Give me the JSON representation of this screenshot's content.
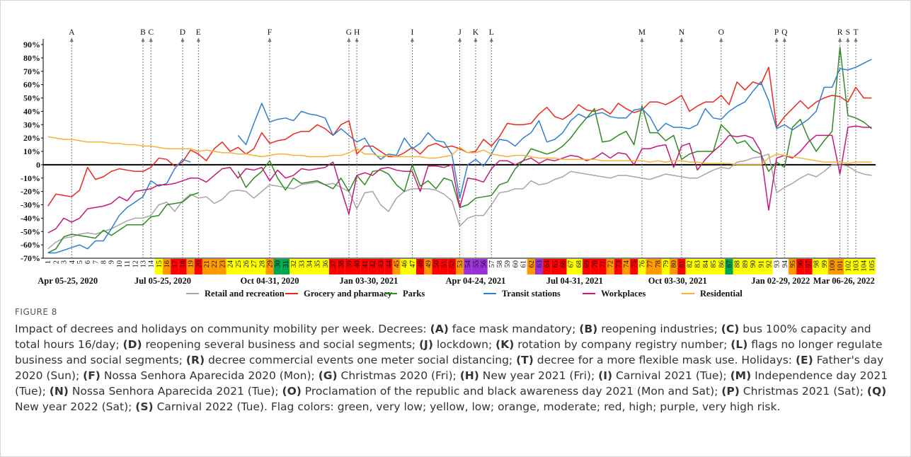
{
  "chart_data": {
    "type": "line",
    "x": [
      1,
      2,
      3,
      4,
      5,
      6,
      7,
      8,
      9,
      10,
      11,
      12,
      13,
      14,
      15,
      16,
      17,
      18,
      19,
      20,
      21,
      22,
      23,
      24,
      25,
      26,
      27,
      28,
      29,
      30,
      31,
      32,
      33,
      34,
      35,
      36,
      37,
      38,
      39,
      40,
      41,
      42,
      43,
      44,
      45,
      46,
      47,
      48,
      49,
      50,
      51,
      52,
      53,
      54,
      55,
      56,
      57,
      58,
      59,
      60,
      61,
      62,
      63,
      64,
      65,
      66,
      67,
      68,
      69,
      70,
      71,
      72,
      73,
      74,
      75,
      76,
      77,
      78,
      79,
      80,
      81,
      82,
      83,
      84,
      85,
      86,
      87,
      88,
      89,
      90,
      91,
      92,
      93,
      94,
      95,
      96,
      97,
      98,
      99,
      100,
      101,
      102,
      103,
      104,
      105
    ],
    "xlim": [
      0.4,
      105.5
    ],
    "ylim": [
      -70,
      90
    ],
    "yticks": [
      {
        "value": -70,
        "label": "-70%"
      },
      {
        "value": -60,
        "label": "-60%"
      },
      {
        "value": -50,
        "label": "-50%"
      },
      {
        "value": -40,
        "label": "-40%"
      },
      {
        "value": -30,
        "label": "-30%"
      },
      {
        "value": -20,
        "label": "-20%"
      },
      {
        "value": -10,
        "label": "-10%"
      },
      0,
      {
        "value": 10,
        "label": "10%"
      },
      {
        "value": 20,
        "label": "20%"
      },
      {
        "value": 30,
        "label": "30%"
      },
      {
        "value": 40,
        "label": "40%"
      },
      {
        "value": 50,
        "label": "50%"
      },
      {
        "value": 60,
        "label": "60%"
      },
      {
        "value": 70,
        "label": "70%"
      },
      {
        "value": 80,
        "label": "80%"
      },
      {
        "value": 90,
        "label": "90%"
      }
    ],
    "series": [
      {
        "name": "Retail and recreation",
        "color": "#a6a6a6",
        "values": [
          -63,
          -58,
          -55,
          -54,
          -52,
          -51,
          -52,
          -50,
          -48,
          -45,
          -42,
          -40,
          -40,
          -38,
          -30,
          -28,
          -35,
          -27,
          -22,
          -25,
          -24,
          -29,
          -26,
          -20,
          -19,
          -20,
          -25,
          -20,
          -15,
          -16,
          -17,
          -18,
          -15,
          -14,
          -13,
          -15,
          -14,
          -17,
          -20,
          -33,
          -21,
          -20,
          -30,
          -35,
          -25,
          -20,
          -18,
          -18,
          -18,
          -19,
          -22,
          -27,
          -46,
          -40,
          -38,
          -38,
          -30,
          -21,
          -20,
          -18,
          -18,
          -12,
          -15,
          -14,
          -11,
          -9,
          -5,
          -6,
          -7,
          -8,
          -9,
          -10,
          -8,
          -8,
          -9,
          -10,
          -11,
          -9,
          -7,
          -8,
          -9,
          -10,
          -10,
          -7,
          -4,
          -2,
          -3,
          2,
          3,
          5,
          6,
          8,
          -21,
          -17,
          -14,
          -10,
          -7,
          -9,
          -5,
          0,
          0,
          -1,
          -5,
          -7,
          -8
        ]
      },
      {
        "name": "Grocery and pharmacy",
        "color": "#e8281e",
        "values": [
          -31,
          -22,
          -23,
          -24,
          -19,
          -2,
          -11,
          -9,
          -5,
          -3,
          -4,
          -5,
          -5,
          -2,
          5,
          4,
          -1,
          2,
          11,
          8,
          3,
          12,
          17,
          10,
          13,
          8,
          12,
          24,
          16,
          18,
          19,
          23,
          25,
          25,
          30,
          27,
          22,
          30,
          33,
          8,
          14,
          14,
          10,
          6,
          6,
          9,
          13,
          8,
          14,
          16,
          13,
          14,
          12,
          9,
          10,
          19,
          14,
          21,
          31,
          30,
          30,
          31,
          38,
          43,
          36,
          34,
          38,
          45,
          41,
          40,
          42,
          38,
          46,
          42,
          39,
          41,
          47,
          47,
          45,
          48,
          52,
          40,
          44,
          47,
          47,
          52,
          45,
          62,
          56,
          62,
          60,
          73,
          28,
          36,
          42,
          48,
          42,
          47,
          50,
          52,
          51,
          47,
          58,
          50,
          50
        ]
      },
      {
        "name": "Parks",
        "color": "#2e8b22",
        "values": [
          -66,
          -63,
          -54,
          -52,
          -53,
          -54,
          -55,
          -49,
          -53,
          -49,
          -45,
          -45,
          -45,
          -39,
          -38,
          -30,
          -29,
          -28,
          -23,
          -21,
          null,
          null,
          null,
          null,
          -5,
          -17,
          -10,
          -5,
          3,
          -10,
          -19,
          -10,
          -14,
          -13,
          -12,
          -15,
          -18,
          -10,
          -20,
          -8,
          -15,
          -5,
          -4,
          -7,
          -15,
          -20,
          0,
          -16,
          -12,
          -18,
          -10,
          -12,
          -32,
          -30,
          -25,
          -24,
          -23,
          -15,
          -13,
          -3,
          3,
          12,
          10,
          8,
          10,
          14,
          20,
          28,
          35,
          42,
          17,
          18,
          22,
          25,
          15,
          44,
          24,
          24,
          18,
          22,
          4,
          8,
          10,
          10,
          10,
          30,
          24,
          16,
          18,
          11,
          8,
          -5,
          2,
          -2,
          28,
          34,
          20,
          10,
          18,
          25,
          88,
          37,
          35,
          32,
          27
        ]
      },
      {
        "name": "Transit stations",
        "color": "#2f7fd0",
        "values": [
          -66,
          -66,
          -64,
          -62,
          -60,
          -63,
          -57,
          -57,
          -48,
          -38,
          -32,
          -28,
          -24,
          -12,
          -16,
          -14,
          -3,
          4,
          2,
          null,
          null,
          null,
          null,
          null,
          22,
          15,
          31,
          46,
          32,
          34,
          35,
          33,
          40,
          38,
          37,
          35,
          22,
          27,
          22,
          17,
          20,
          10,
          4,
          8,
          7,
          20,
          12,
          16,
          24,
          18,
          17,
          8,
          -25,
          0,
          4,
          -1,
          8,
          19,
          18,
          14,
          20,
          24,
          33,
          17,
          19,
          24,
          33,
          38,
          35,
          38,
          39,
          36,
          35,
          35,
          41,
          42,
          36,
          25,
          31,
          28,
          28,
          27,
          30,
          42,
          35,
          34,
          40,
          44,
          47,
          55,
          62,
          48,
          27,
          30,
          26,
          30,
          34,
          40,
          58,
          58,
          72,
          71,
          73,
          76,
          79
        ]
      },
      {
        "name": "Workplaces",
        "color": "#c2187a",
        "values": [
          -51,
          -48,
          -40,
          -43,
          -40,
          -33,
          -32,
          -31,
          -29,
          -24,
          -27,
          -20,
          -19,
          -18,
          -15,
          -15,
          -14,
          -12,
          -10,
          -10,
          -13,
          -8,
          -3,
          -2,
          -10,
          -3,
          -4,
          -2,
          -12,
          -4,
          -10,
          -8,
          -3,
          -4,
          -3,
          -2,
          2,
          -18,
          -37,
          -8,
          -6,
          -8,
          -3,
          -2,
          -4,
          -5,
          -5,
          -20,
          -1,
          -1,
          -2,
          0,
          -32,
          -10,
          -11,
          -13,
          -3,
          3,
          3,
          0,
          3,
          5,
          1,
          4,
          3,
          5,
          7,
          6,
          3,
          5,
          9,
          5,
          9,
          8,
          0,
          12,
          12,
          14,
          15,
          -2,
          14,
          16,
          -4,
          4,
          10,
          15,
          22,
          21,
          22,
          20,
          10,
          -34,
          5,
          7,
          5,
          10,
          17,
          22,
          22,
          22,
          -7,
          28,
          29,
          28,
          28
        ]
      },
      {
        "name": "Residential",
        "color": "#f5b335",
        "values": [
          21,
          20,
          19,
          19,
          18,
          17,
          17,
          17,
          16,
          16,
          15,
          15,
          14,
          14,
          13,
          12,
          12,
          12,
          12,
          10,
          11,
          10,
          9,
          9,
          8,
          8,
          7,
          6,
          7,
          8,
          8,
          7,
          7,
          6,
          6,
          6,
          7,
          7,
          9,
          12,
          8,
          8,
          6,
          7,
          6,
          6,
          6,
          6,
          5,
          5,
          6,
          7,
          13,
          9,
          9,
          11,
          8,
          7,
          6,
          7,
          7,
          6,
          5,
          5,
          5,
          4,
          4,
          4,
          4,
          4,
          3,
          3,
          3,
          3,
          3,
          3,
          2,
          3,
          2,
          3,
          3,
          2,
          2,
          1,
          1,
          1,
          1,
          0,
          0,
          0,
          0,
          5,
          8,
          7,
          6,
          5,
          4,
          3,
          2,
          2,
          2,
          1,
          2,
          2,
          2
        ]
      }
    ],
    "flags": [
      null,
      null,
      null,
      null,
      null,
      null,
      null,
      null,
      null,
      null,
      null,
      null,
      null,
      null,
      "#ffff00",
      "#ff9900",
      "#ff0000",
      "#ff0000",
      "#ff9900",
      "#ff0000",
      "#ff9900",
      "#ff9900",
      "#ff9900",
      "#ffff00",
      "#ffff00",
      "#ffff00",
      "#ffff00",
      "#ffff00",
      "#ff9900",
      "#00a651",
      "#00a651",
      "#ffff00",
      "#ffff00",
      "#ffff00",
      "#ffff00",
      "#ffff00",
      "#ff0000",
      "#ff0000",
      "#ff0000",
      "#ff0000",
      "#ff0000",
      "#ff0000",
      "#ff0000",
      "#ff0000",
      "#ff9900",
      "#ffff00",
      "#ffff00",
      "#ff0000",
      "#ff9900",
      "#ff0000",
      "#ff0000",
      "#ff0000",
      "#ff9900",
      "#9b30d9",
      "#9b30d9",
      "#9b30d9",
      null,
      null,
      null,
      null,
      null,
      "#ff9900",
      "#9b30d9",
      "#ff0000",
      "#ff0000",
      "#ff0000",
      "#ffff00",
      "#ffff00",
      "#ff0000",
      "#ff0000",
      "#ff0000",
      "#ff9900",
      "#ff0000",
      "#ff9900",
      "#ff0000",
      "#ffff00",
      "#ff9900",
      "#ff9900",
      "#ffff00",
      "#ff9900",
      "#ff0000",
      "#ffff00",
      "#ffff00",
      "#ffff00",
      "#ffff00",
      "#ffff00",
      "#00a651",
      "#ffff00",
      "#ffff00",
      "#ffff00",
      "#ffff00",
      "#ffff00",
      null,
      null,
      "#ff9900",
      "#ff0000",
      "#ff0000",
      "#ffff00",
      "#ffff00",
      "#ff9900",
      "#ff9900",
      "#ffff00",
      "#ffff00",
      "#ffff00",
      "#ffff00"
    ],
    "annotations": [
      {
        "label": "A",
        "x": 4
      },
      {
        "label": "B",
        "x": 13
      },
      {
        "label": "C",
        "x": 14
      },
      {
        "label": "D",
        "x": 18
      },
      {
        "label": "E",
        "x": 20
      },
      {
        "label": "F",
        "x": 29
      },
      {
        "label": "G",
        "x": 39
      },
      {
        "label": "H",
        "x": 40
      },
      {
        "label": "I",
        "x": 47
      },
      {
        "label": "J",
        "x": 53
      },
      {
        "label": "K",
        "x": 55
      },
      {
        "label": "L",
        "x": 57
      },
      {
        "label": "M",
        "x": 76
      },
      {
        "label": "N",
        "x": 81
      },
      {
        "label": "O",
        "x": 86
      },
      {
        "label": "P",
        "x": 93
      },
      {
        "label": "Q",
        "x": 94
      },
      {
        "label": "R",
        "x": 101
      },
      {
        "label": "S",
        "x": 102
      },
      {
        "label": "T",
        "x": 103
      }
    ],
    "periods": [
      {
        "label": "Apr 05-25, 2020",
        "x": 3.5
      },
      {
        "label": "Jul 05-25, 2020",
        "x": 15.5
      },
      {
        "label": "Oct 04-31, 2020",
        "x": 29
      },
      {
        "label": "Jan 03-30, 2021",
        "x": 41.5
      },
      {
        "label": "Apr 04-24, 2021",
        "x": 55
      },
      {
        "label": "Jul 04-31, 2021",
        "x": 67.5
      },
      {
        "label": "Oct 03-30, 2021",
        "x": 80.5
      },
      {
        "label": "Jan 02-29, 2022",
        "x": 93.5
      },
      {
        "label": "Mar 06-26, 2022",
        "x": 101.5
      }
    ]
  },
  "caption": {
    "figure": "FIGURE 8",
    "intro": "Impact of decrees and holidays on community mobility per week. Decrees:",
    "items": [
      {
        "key": "(A)",
        "text": "face mask mandatory;"
      },
      {
        "key": "(B)",
        "text": "reopening industries;"
      },
      {
        "key": "(C)",
        "text": "bus 100% capacity and total hours 16/day;"
      },
      {
        "key": "(D)",
        "text": "reopening several business and social segments;"
      },
      {
        "key": "(J)",
        "text": "lockdown;"
      },
      {
        "key": "(K)",
        "text": "rotation by company registry number;"
      },
      {
        "key": "(L)",
        "text": "flags no longer regulate business and social segments;"
      },
      {
        "key": "(R)",
        "text": "decree commercial events one meter social distancing;"
      },
      {
        "key": "(T)",
        "text": "decree for a more flexible mask use. Holidays:"
      },
      {
        "key": "(E)",
        "text": "Father's day 2020 (Sun);"
      },
      {
        "key": "(F)",
        "text": "Nossa Senhora Aparecida 2020 (Mon);"
      },
      {
        "key": "(G)",
        "text": "Christmas 2020 (Fri);"
      },
      {
        "key": "(H)",
        "text": "New year 2021 (Fri);"
      },
      {
        "key": "(I)",
        "text": "Carnival 2021 (Tue);"
      },
      {
        "key": "(M)",
        "text": "Independence day 2021 (Tue);"
      },
      {
        "key": "(N)",
        "text": "Nossa Senhora Aparecida 2021 (Tue);"
      },
      {
        "key": "(O)",
        "text": "Proclamation of the republic and black awareness day 2021 (Mon and Sat);"
      },
      {
        "key": "(P)",
        "text": "Christmas 2021 (Sat);"
      },
      {
        "key": "(Q)",
        "text": "New year 2022 (Sat);"
      },
      {
        "key": "(S)",
        "text": "Carnival 2022 (Tue). Flag colors: green, very low; yellow, low; orange, moderate; red, high; purple, very high risk."
      }
    ]
  }
}
